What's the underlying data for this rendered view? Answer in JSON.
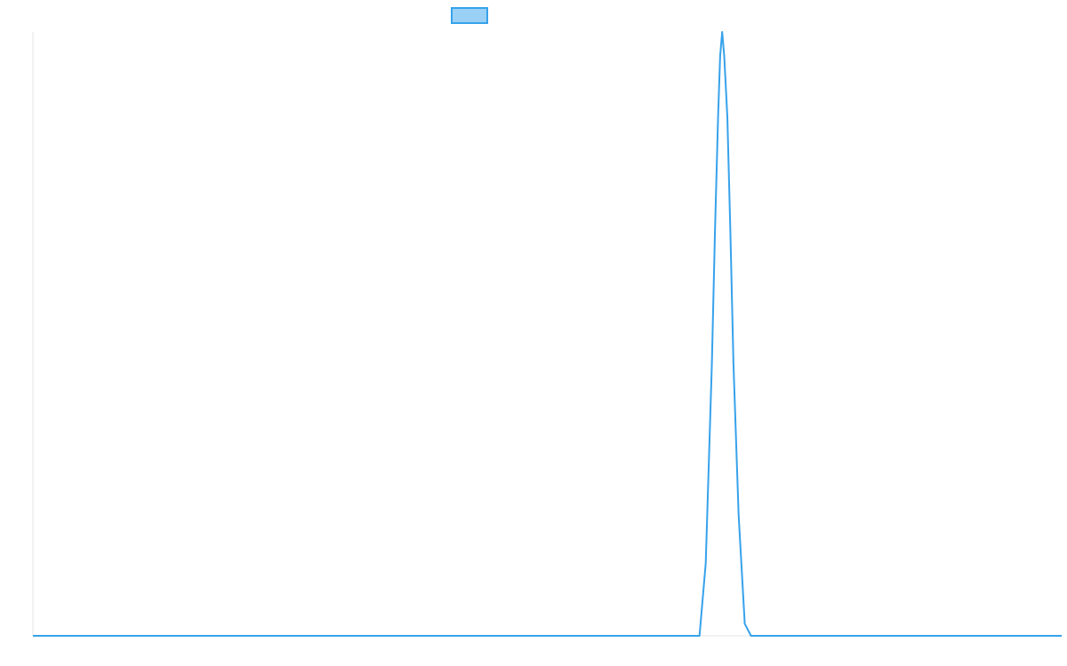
{
  "chart_data": {
    "type": "line",
    "title": "",
    "xlabel": "",
    "ylabel": "",
    "grid": false,
    "legend": "top-center",
    "x_range": [
      0,
      100
    ],
    "ylim": [
      0,
      1
    ],
    "colors": {
      "line": "#36a2eb",
      "legend_fill": "#9ad0f5",
      "axis": "#e6e6e6"
    },
    "series": [
      {
        "label": "",
        "x": [
          0,
          64.8,
          65.4,
          66.0,
          66.3,
          66.6,
          66.8,
          67.0,
          67.2,
          67.5,
          67.8,
          68.1,
          68.6,
          69.2,
          69.8,
          100
        ],
        "y": [
          0,
          0,
          0.12,
          0.45,
          0.67,
          0.86,
          0.96,
          1.0,
          0.96,
          0.86,
          0.67,
          0.45,
          0.2,
          0.02,
          0,
          0
        ]
      }
    ]
  }
}
